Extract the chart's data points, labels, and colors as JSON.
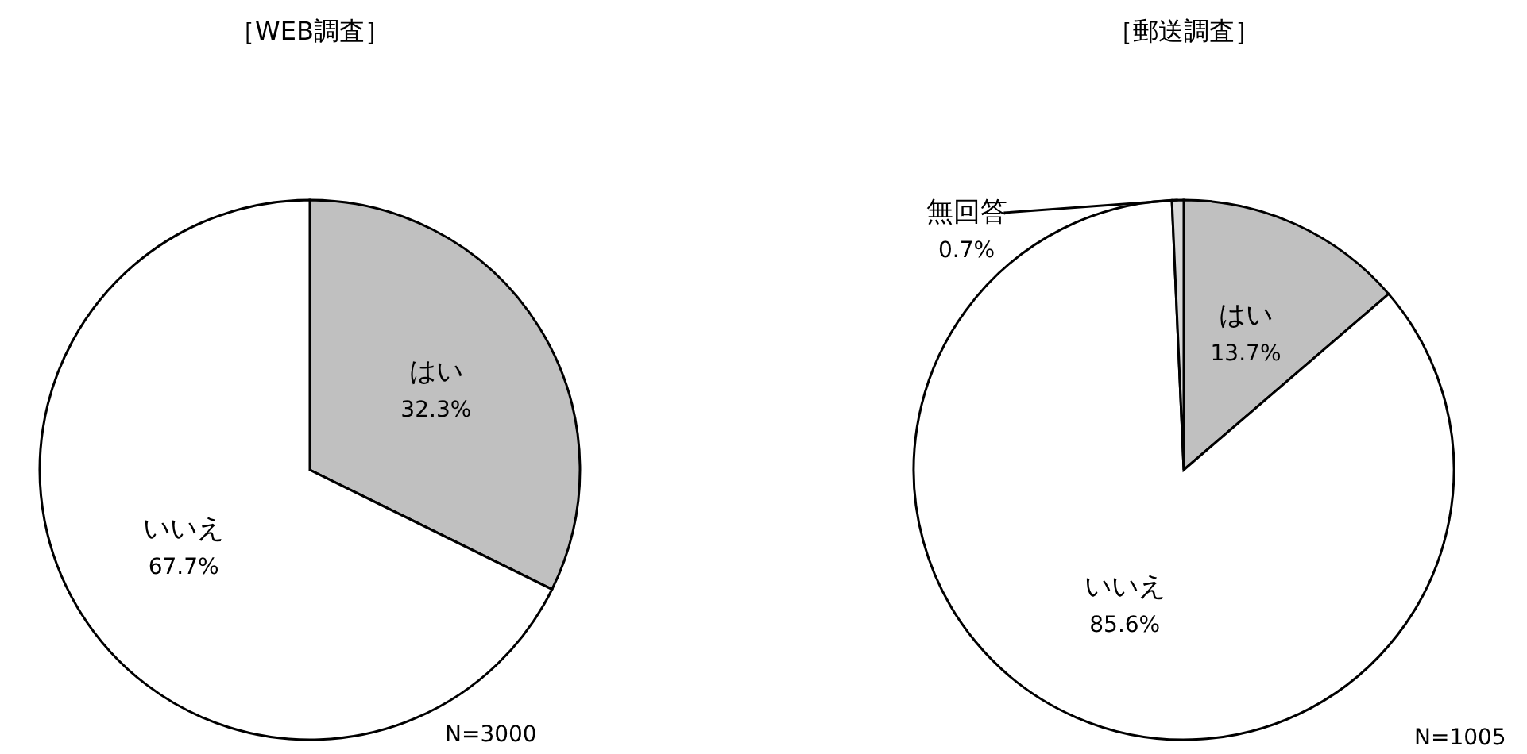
{
  "chart_data": [
    {
      "type": "pie",
      "title": "［WEB調査］",
      "categories": [
        "はい",
        "いいえ"
      ],
      "values": [
        32.3,
        67.7
      ],
      "colors": [
        "#c0c0c0",
        "#ffffff"
      ],
      "value_labels": [
        "32.3%",
        "67.7%"
      ],
      "annotations": [
        "N=3000"
      ]
    },
    {
      "type": "pie",
      "title": "［郵送調査］",
      "categories": [
        "はい",
        "いいえ",
        "無回答"
      ],
      "values": [
        13.7,
        85.6,
        0.7
      ],
      "colors": [
        "#c0c0c0",
        "#ffffff",
        "#d9d9d9"
      ],
      "value_labels": [
        "13.7%",
        "85.6%",
        "0.7%"
      ],
      "annotations": [
        "N=1005"
      ]
    }
  ]
}
